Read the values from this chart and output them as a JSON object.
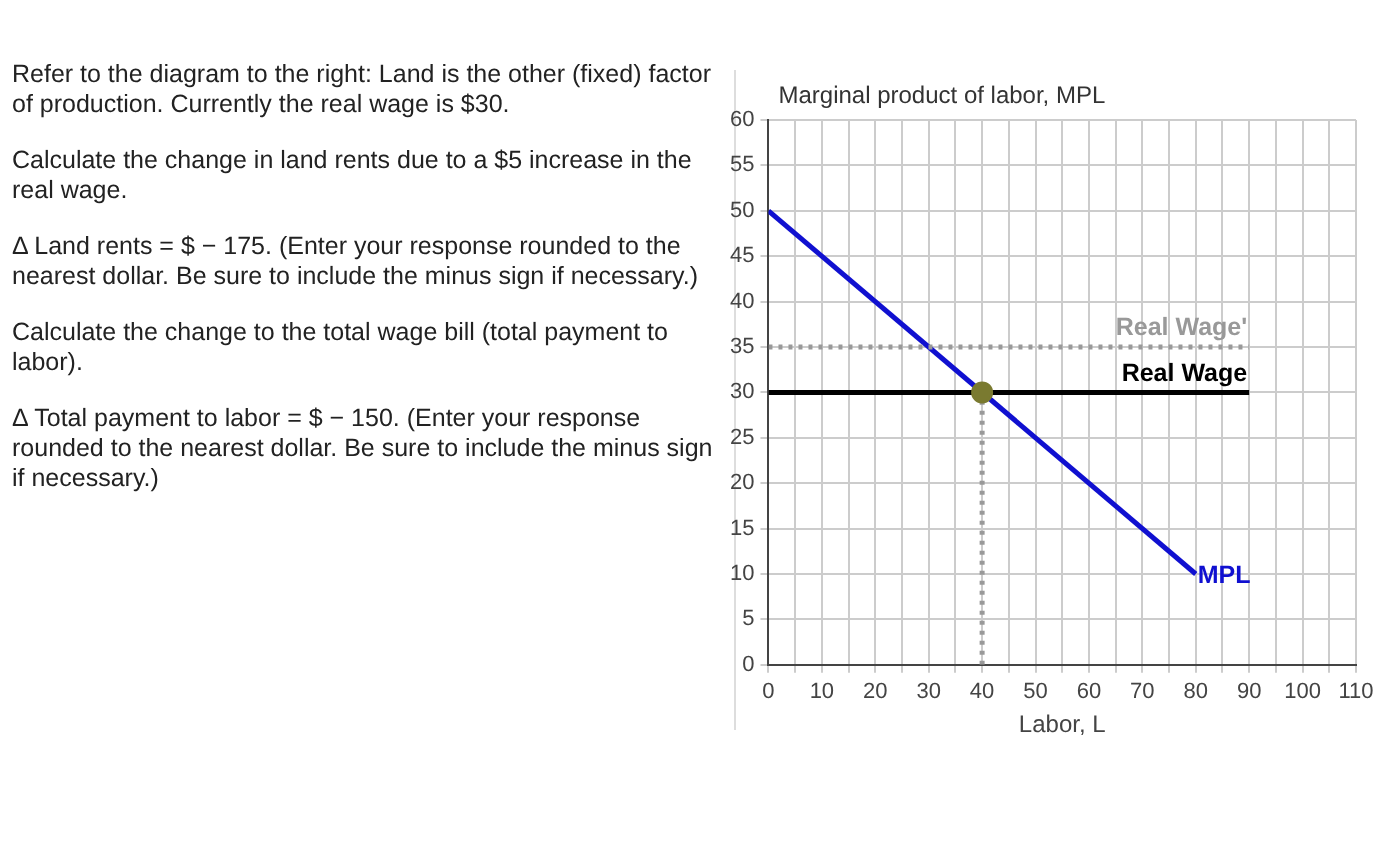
{
  "chart_data": {
    "type": "line",
    "ylabel": "Marginal product of labor, MPL",
    "xlabel": "Labor, L",
    "annotations": [
      "Refer to the diagram to the right: Land is the other (fixed) factor of production. Currently the real wage is $30.",
      "Calculate the change in land rents due to a $5 increase in the real wage.",
      "Δ Land rents = $ − 175. (Enter your response rounded to the nearest dollar. Be sure to include the minus sign if necessary.)",
      "Calculate the change to the total wage bill (total payment to labor).",
      "Δ Total payment to labor = $ − 150. (Enter your response rounded to the nearest dollar. Be sure to include the minus sign if necessary.)"
    ],
    "xlim": [
      0,
      110
    ],
    "ylim": [
      0,
      60
    ],
    "xticks": [
      0,
      {
        "value": 5,
        "label": null
      },
      10,
      {
        "value": 15,
        "label": null
      },
      20,
      {
        "value": 25,
        "label": null
      },
      30,
      {
        "value": 35,
        "label": null
      },
      40,
      {
        "value": 45,
        "label": null
      },
      50,
      {
        "value": 55,
        "label": null
      },
      60,
      {
        "value": 65,
        "label": null
      },
      70,
      {
        "value": 75,
        "label": null
      },
      80,
      {
        "value": 85,
        "label": null
      },
      90,
      {
        "value": 95,
        "label": null
      },
      100,
      {
        "value": 105,
        "label": null
      },
      110
    ],
    "yticks": [
      0,
      5,
      10,
      15,
      20,
      25,
      30,
      35,
      40,
      45,
      50,
      55,
      60
    ],
    "grid": true,
    "legend": false,
    "marker": "none",
    "series": [
      {
        "name": "Real Wage'",
        "color": "#999999",
        "x": [
          0,
          90
        ],
        "values": [
          35,
          35
        ],
        "line_style": "dotted"
      },
      {
        "name": "Real Wage",
        "color": "#000000",
        "x": [
          0,
          90
        ],
        "values": [
          30,
          30
        ],
        "line_style": "solid"
      },
      {
        "name": "MPL",
        "color": "#1010d0",
        "x": [
          0,
          80
        ],
        "values": [
          50,
          10
        ],
        "line_style": "solid"
      },
      {
        "color": "#999999",
        "x": [
          40,
          40
        ],
        "values": [
          0,
          30
        ],
        "line_style": "dotted"
      },
      {
        "type": "scatter",
        "color": "#7a7a30",
        "x": [
          40
        ],
        "values": [
          30
        ],
        "marker": "circle"
      }
    ]
  }
}
